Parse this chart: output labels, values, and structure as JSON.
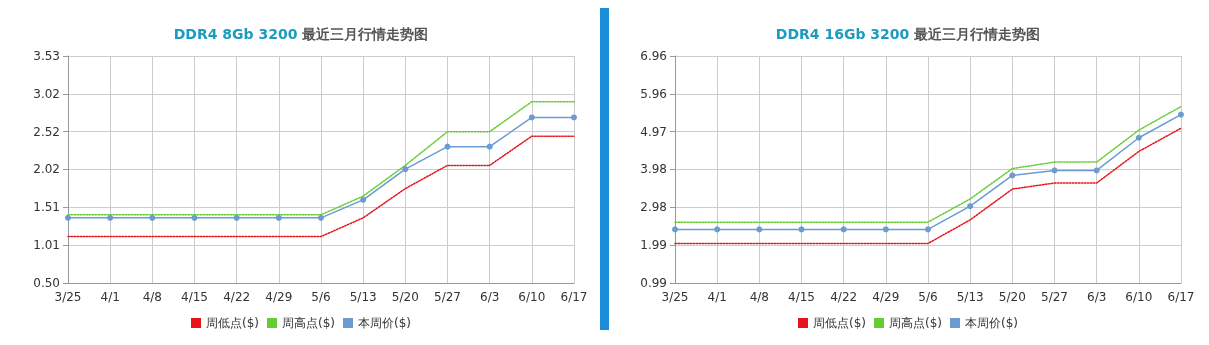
{
  "chart_data": [
    {
      "type": "line",
      "title": "DDR4 8Gb 3200 最近三月行情走势图",
      "categories": [
        "3/25",
        "4/1",
        "4/8",
        "4/15",
        "4/22",
        "4/29",
        "5/6",
        "5/13",
        "5/20",
        "5/27",
        "6/3",
        "6/10",
        "6/17"
      ],
      "series": [
        {
          "name": "周低点($)",
          "color": "#e8141b",
          "line_style": "dotted",
          "marker": "none",
          "values": [
            1.12,
            1.12,
            1.12,
            1.12,
            1.12,
            1.12,
            1.12,
            1.37,
            1.76,
            2.07,
            2.07,
            2.46,
            2.46
          ]
        },
        {
          "name": "周高点($)",
          "color": "#66cc33",
          "line_style": "dotted",
          "marker": "none",
          "values": [
            1.41,
            1.41,
            1.41,
            1.41,
            1.41,
            1.41,
            1.41,
            1.66,
            2.07,
            2.52,
            2.52,
            2.92,
            2.92
          ]
        },
        {
          "name": "本周价($)",
          "color": "#6b9bd1",
          "line_style": "solid",
          "marker": "circle",
          "values": [
            1.37,
            1.37,
            1.37,
            1.37,
            1.37,
            1.37,
            1.37,
            1.61,
            2.02,
            2.32,
            2.32,
            2.71,
            2.71
          ]
        }
      ],
      "ylim": [
        0.5,
        3.53
      ],
      "yticks": [
        {
          "value": 0.5,
          "label": "0.50"
        },
        1.01,
        1.51,
        2.02,
        2.52,
        3.02,
        3.53
      ],
      "grid": true,
      "legend": "bottom"
    },
    {
      "type": "line",
      "title": "DDR4 16Gb 3200 最近三月行情走势图",
      "categories": [
        "3/25",
        "4/1",
        "4/8",
        "4/15",
        "4/22",
        "4/29",
        "5/6",
        "5/13",
        "5/20",
        "5/27",
        "6/3",
        "6/10",
        "6/17"
      ],
      "series": [
        {
          "name": "周低点($)",
          "color": "#e8141b",
          "line_style": "dotted",
          "marker": "none",
          "values": [
            2.03,
            2.03,
            2.03,
            2.03,
            2.03,
            2.03,
            2.03,
            2.65,
            3.46,
            3.62,
            3.62,
            4.45,
            5.06
          ]
        },
        {
          "name": "周高点($)",
          "color": "#66cc33",
          "line_style": "dotted",
          "marker": "none",
          "values": [
            2.59,
            2.59,
            2.59,
            2.59,
            2.59,
            2.59,
            2.59,
            3.2,
            4.0,
            4.17,
            4.17,
            5.01,
            5.63
          ]
        },
        {
          "name": "本周价($)",
          "color": "#6b9bd1",
          "line_style": "solid",
          "marker": "circle",
          "values": [
            2.4,
            2.4,
            2.4,
            2.4,
            2.4,
            2.4,
            2.4,
            3.01,
            3.82,
            3.95,
            3.95,
            4.81,
            5.42
          ]
        }
      ],
      "ylim": [
        0.99,
        6.96
      ],
      "yticks": [
        0.99,
        1.99,
        2.98,
        3.98,
        4.97,
        5.96,
        6.96
      ],
      "grid": true,
      "legend": "bottom"
    }
  ]
}
